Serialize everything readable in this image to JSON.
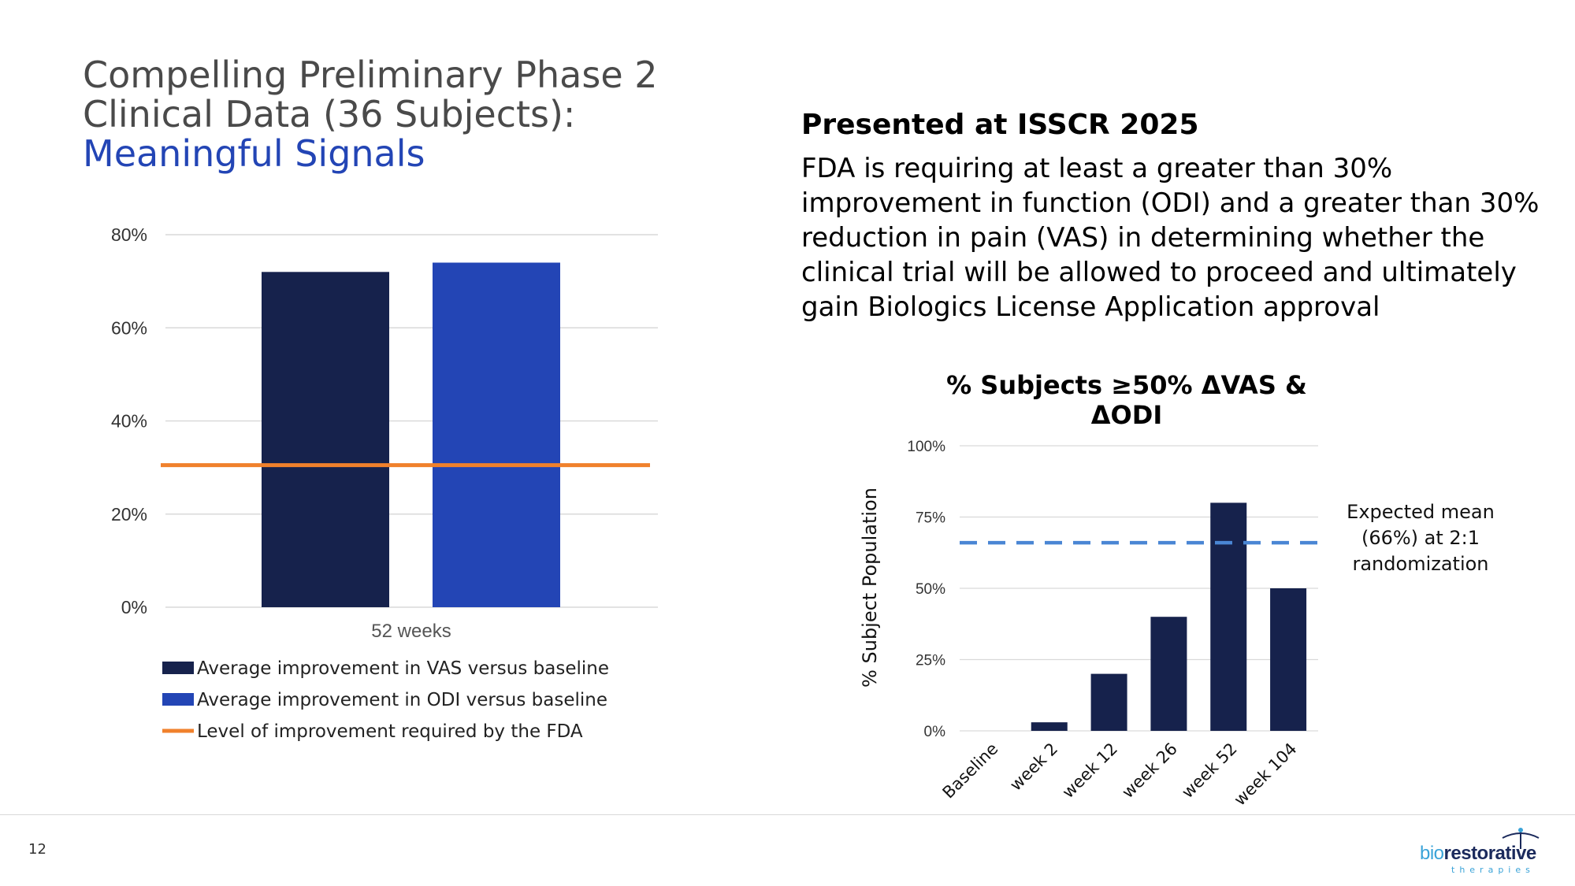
{
  "page": {
    "title_line1": "Compelling Preliminary Phase 2",
    "title_line2": "Clinical Data (36 Subjects):",
    "title_highlight": "Meaningful Signals",
    "subhead": "Presented at ISSCR 2025",
    "body": "FDA is requiring at least a greater than 30% improvement in function (ODI) and a greater than 30% reduction in pain (VAS) in determining whether the clinical trial will be allowed to proceed and ultimately gain Biologics License Application approval",
    "page_number": "12",
    "logo_bio": "bio",
    "logo_rest": "restorative",
    "logo_sub": "therapies"
  },
  "colors": {
    "vas": "#16224c",
    "odi": "#2345b5",
    "fda": "#f0812c",
    "bar2": "#16224c",
    "dash": "#4a86d4",
    "grid": "#d9d9d9"
  },
  "chart_data": [
    {
      "type": "bar",
      "categories": [
        "52 weeks"
      ],
      "series": [
        {
          "name": "Average improvement in VAS versus baseline",
          "values": [
            72
          ]
        },
        {
          "name": "Average improvement in ODI versus baseline",
          "values": [
            74
          ]
        }
      ],
      "reference_line": {
        "name": "Level of improvement required by the FDA",
        "value": 30.5
      },
      "yticks": [
        "0%",
        "20%",
        "40%",
        "60%",
        "80%"
      ],
      "ytick_values": [
        0,
        20,
        40,
        60,
        80
      ],
      "ylim": [
        0,
        80
      ],
      "legend": "bottom"
    },
    {
      "type": "bar",
      "title": "% Subjects ≥50% ΔVAS & ΔODI",
      "ylabel": "% Subject Population",
      "categories": [
        "Baseline",
        "week 2",
        "week 12",
        "week 26",
        "week 52",
        "week 104"
      ],
      "values": [
        0,
        3,
        20,
        40,
        80,
        50
      ],
      "yticks": [
        "0%",
        "25%",
        "50%",
        "75%",
        "100%"
      ],
      "ytick_values": [
        0,
        25,
        50,
        75,
        100
      ],
      "ylim": [
        0,
        100
      ],
      "reference_line": {
        "value": 66,
        "style": "dashed"
      },
      "annotation": [
        "Expected mean",
        "(66%) at 2:1",
        "randomization"
      ]
    }
  ]
}
